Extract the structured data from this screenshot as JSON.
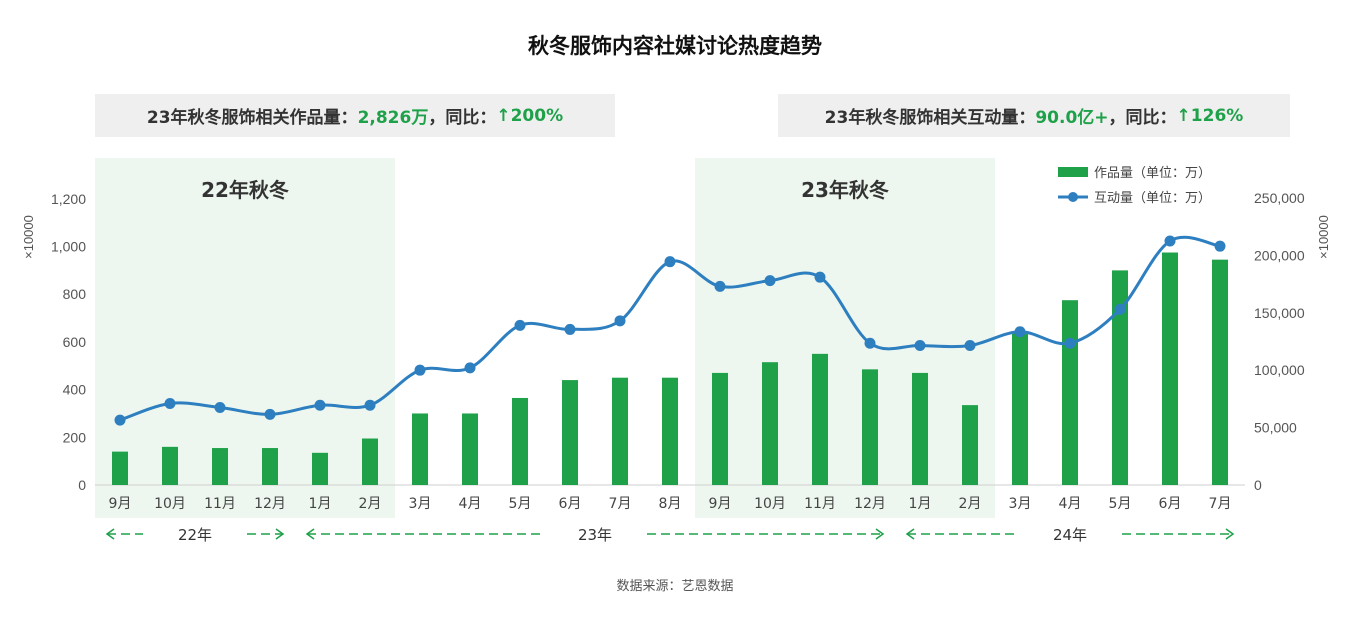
{
  "title": "秋冬服饰内容社媒讨论热度趋势",
  "stats": {
    "left": {
      "label": "23年秋冬服饰相关作品量：",
      "value": "2,826万",
      "sep": "，同比：",
      "yoy": "↑200%"
    },
    "right": {
      "label": "23年秋冬服饰相关互动量：",
      "value": "90.0亿+",
      "sep": "，同比：",
      "yoy": "↑126%"
    }
  },
  "source": "数据来源：艺恩数据",
  "colors": {
    "bar": "#1fa14a",
    "line": "#2e7fc0",
    "shade": "#edf7ef",
    "highlight": "#1fa14a",
    "arrow": "#1fa14a"
  },
  "chart_data": {
    "type": "bar+line",
    "categories": [
      "9月",
      "10月",
      "11月",
      "12月",
      "1月",
      "2月",
      "3月",
      "4月",
      "5月",
      "6月",
      "7月",
      "8月",
      "9月",
      "10月",
      "11月",
      "12月",
      "1月",
      "2月",
      "3月",
      "4月",
      "5月",
      "6月",
      "7月"
    ],
    "series": [
      {
        "name": "作品量（单位：万）",
        "type": "bar",
        "axis": "left",
        "values": [
          140,
          160,
          155,
          155,
          135,
          195,
          300,
          300,
          365,
          440,
          450,
          450,
          470,
          515,
          550,
          485,
          470,
          335,
          635,
          775,
          900,
          975,
          945
        ]
      },
      {
        "name": "互动量（单位：万）",
        "type": "line",
        "axis": "right",
        "values": [
          56500,
          71000,
          67500,
          61500,
          69500,
          69500,
          100000,
          102000,
          139000,
          135500,
          143000,
          194500,
          173000,
          178000,
          181000,
          123500,
          121500,
          121500,
          133500,
          123500,
          153000,
          212500,
          208000
        ]
      }
    ],
    "y_left": {
      "min": 0,
      "max": 1300,
      "ticks": [
        "0",
        "200",
        "400",
        "600",
        "800",
        "1,000",
        "1,200"
      ],
      "unit": "×10000"
    },
    "y_right": {
      "min": 0,
      "max": 270000,
      "ticks": [
        "0",
        "50,000",
        "100,000",
        "150,000",
        "200,000",
        "250,000"
      ],
      "unit": "×10000"
    },
    "regions": [
      {
        "label": "22年秋冬",
        "from": 0,
        "to": 5
      },
      {
        "label": "23年秋冬",
        "from": 12,
        "to": 17
      }
    ],
    "year_groups": [
      {
        "label": "22年",
        "from": 0,
        "to": 3
      },
      {
        "label": "23年",
        "from": 4,
        "to": 15
      },
      {
        "label": "24年",
        "from": 16,
        "to": 22
      }
    ],
    "legend_position": "top-right"
  }
}
